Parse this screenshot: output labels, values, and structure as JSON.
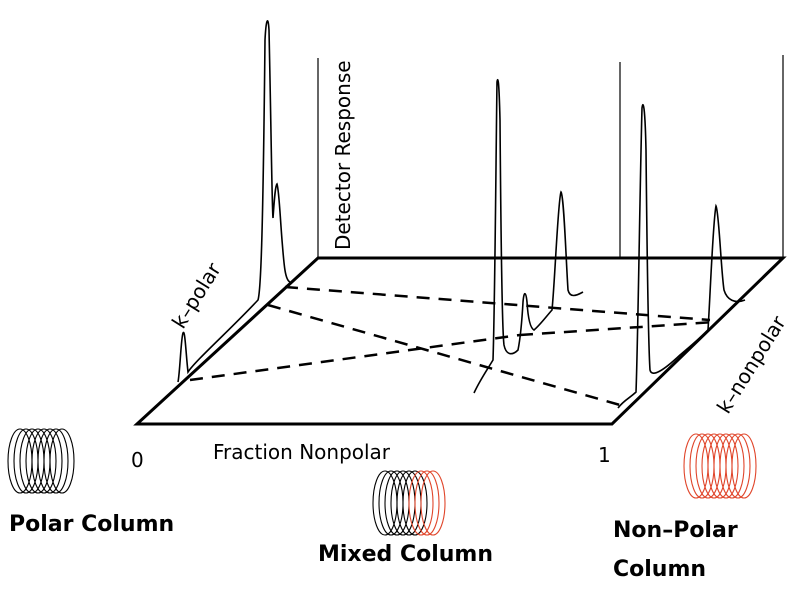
{
  "labels": {
    "axis_k_polar": "k–polar",
    "axis_detector": "Detector Response",
    "axis_k_nonpolar": "k–nonpolar",
    "axis_fraction": "Fraction Nonpolar",
    "tick_zero": "0",
    "tick_one": "1"
  },
  "columns": {
    "polar": {
      "label": "Polar Column",
      "color": "#000000"
    },
    "mixed": {
      "label": "Mixed Column",
      "colors": [
        "#000000",
        "#e0452a"
      ]
    },
    "nonpolar": {
      "line1": "Non–Polar",
      "line2": "Column",
      "color": "#e0452a"
    }
  },
  "colors": {
    "line": "#000000",
    "coil_red": "#e0452a"
  }
}
